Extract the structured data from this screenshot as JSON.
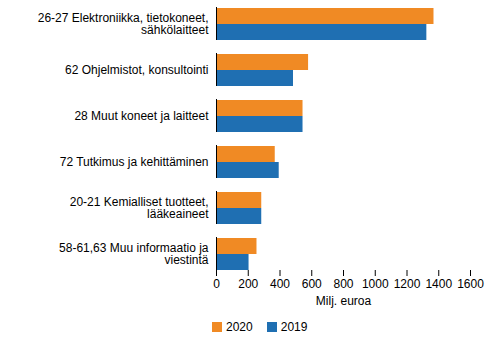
{
  "chart_data": {
    "type": "bar",
    "orientation": "horizontal",
    "categories": [
      "26-27 Elektroniikka, tietokoneet, sähkölaitteet",
      "62 Ohjelmistot, konsultointi",
      "28 Muut koneet ja laitteet",
      "72 Tutkimus ja kehittäminen",
      "20-21 Kemialliset tuotteet, lääkeaineet",
      "58-61,63 Muu informaatio ja viestintä"
    ],
    "series": [
      {
        "name": "2020",
        "color": "#f08a24",
        "values": [
          1370,
          580,
          545,
          370,
          285,
          255
        ]
      },
      {
        "name": "2019",
        "color": "#1f6fb2",
        "values": [
          1325,
          485,
          545,
          395,
          285,
          205
        ]
      }
    ],
    "x_label": "Milj. euroa",
    "xlim": [
      0,
      1600
    ],
    "xticks": [
      0,
      200,
      400,
      600,
      800,
      1000,
      1200,
      1400,
      1600
    ],
    "grid": false,
    "legend": "bottom"
  }
}
